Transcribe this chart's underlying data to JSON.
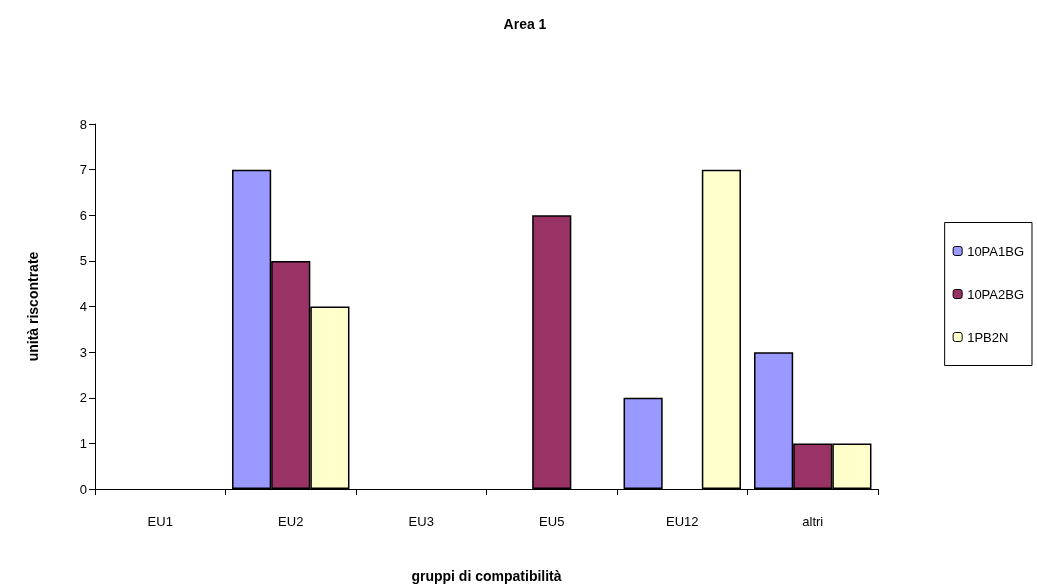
{
  "chart_data": {
    "type": "bar",
    "title": "Area 1",
    "xlabel": "gruppi di compatibilità",
    "ylabel": "unità riscontrate",
    "categories": [
      "EU1",
      "EU2",
      "EU3",
      "EU5",
      "EU12",
      "altri"
    ],
    "series": [
      {
        "name": "10PA1BG",
        "color": "#9999ff",
        "values": [
          0,
          7,
          0,
          0,
          2,
          3
        ]
      },
      {
        "name": "10PA2BG",
        "color": "#993366",
        "values": [
          0,
          5,
          0,
          6,
          0,
          1
        ]
      },
      {
        "name": "1PB2N",
        "color": "#ffffcc",
        "values": [
          0,
          4,
          0,
          0,
          7,
          1
        ]
      }
    ],
    "ylim": [
      0,
      8
    ],
    "yticks": [
      0,
      1,
      2,
      3,
      4,
      5,
      6,
      7,
      8
    ],
    "grid": false,
    "legend": "right"
  }
}
